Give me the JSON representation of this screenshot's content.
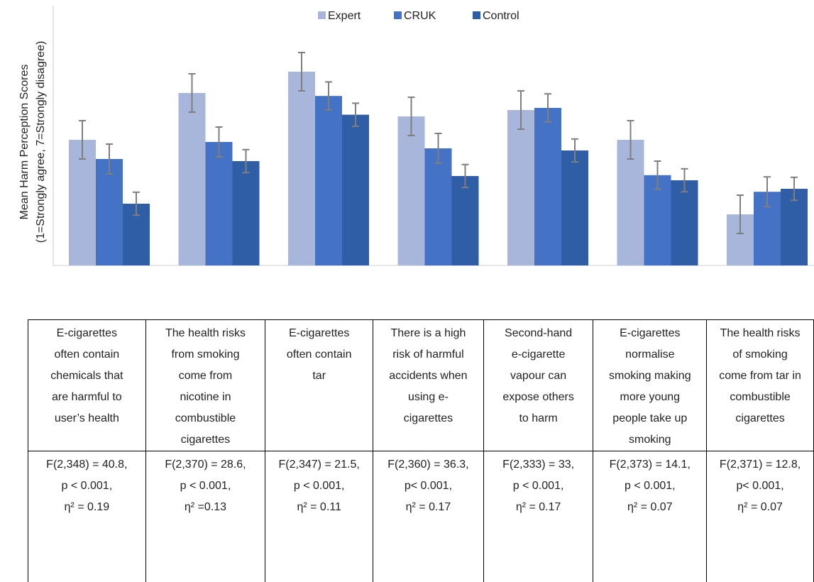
{
  "chart_data": {
    "type": "bar",
    "ylabel": [
      "Mean Harm Perception Scores",
      "(1=Strongly agree, 7=Strongly disagree)"
    ],
    "legend_position": "top-center",
    "grid": false,
    "categories": [
      "E-cigarettes often contain chemicals that are harmful to user’s health",
      "The health risks from smoking come from nicotine in combustible cigarettes",
      "E-cigarettes often contain tar",
      "There is a high risk of harmful accidents when using e-cigarettes",
      "Second-hand e-cigarette vapour can expose others to harm",
      "E-cigarettes normalise smoking making more young people take up smoking",
      "The health risks of smoking come from tar in combustible cigarettes"
    ],
    "series": [
      {
        "name": "Expert",
        "color": "#a9b6dc",
        "values": [
          3.75,
          4.85,
          5.35,
          4.3,
          4.45,
          3.75,
          2.0
        ],
        "errors": [
          0.45,
          0.45,
          0.45,
          0.45,
          0.45,
          0.45,
          0.45
        ]
      },
      {
        "name": "CRUK",
        "color": "#4472c4",
        "values": [
          3.3,
          3.7,
          4.78,
          3.55,
          4.5,
          2.92,
          2.53
        ],
        "errors": [
          0.35,
          0.35,
          0.33,
          0.35,
          0.33,
          0.33,
          0.35
        ]
      },
      {
        "name": "Control",
        "color": "#2f5ea7",
        "values": [
          2.25,
          3.25,
          4.34,
          2.9,
          3.5,
          2.8,
          2.6
        ],
        "errors": [
          0.27,
          0.27,
          0.27,
          0.27,
          0.27,
          0.27,
          0.27
        ]
      }
    ]
  },
  "table": {
    "categories": [
      [
        "E-cigarettes",
        "often contain",
        "chemicals that",
        "are harmful to",
        "user’s health"
      ],
      [
        "The health risks",
        "from smoking",
        "come from",
        "nicotine in",
        "combustible",
        "cigarettes"
      ],
      [
        "E-cigarettes",
        "often contain",
        "tar"
      ],
      [
        "There is a high",
        "risk of harmful",
        "accidents when",
        "using e-",
        "cigarettes"
      ],
      [
        "Second-hand",
        "e-cigarette",
        "vapour can",
        "expose others",
        "to harm"
      ],
      [
        "E-cigarettes",
        "normalise",
        "smoking making",
        "more young",
        "people take up",
        "smoking"
      ],
      [
        "The health risks",
        "of smoking",
        "come from tar in",
        "combustible",
        "cigarettes"
      ]
    ],
    "stats": [
      [
        "F(2,348) = 40.8,",
        "p < 0.001,",
        "η² = 0.19"
      ],
      [
        "F(2,370) = 28.6,",
        "p < 0.001,",
        "η² =0.13"
      ],
      [
        "F(2,347) = 21.5,",
        "p < 0.001,",
        "η²  = 0.11"
      ],
      [
        "F(2,360) = 36.3,",
        "p< 0.001,",
        "η² = 0.17"
      ],
      [
        "F(2,333) = 33,",
        "p < 0.001,",
        "η² = 0.17"
      ],
      [
        "F(2,373) = 14.1,",
        "p < 0.001,",
        "η² = 0.07"
      ],
      [
        "F(2,371) = 12.8,",
        "p< 0.001,",
        "η² = 0.07"
      ]
    ]
  }
}
